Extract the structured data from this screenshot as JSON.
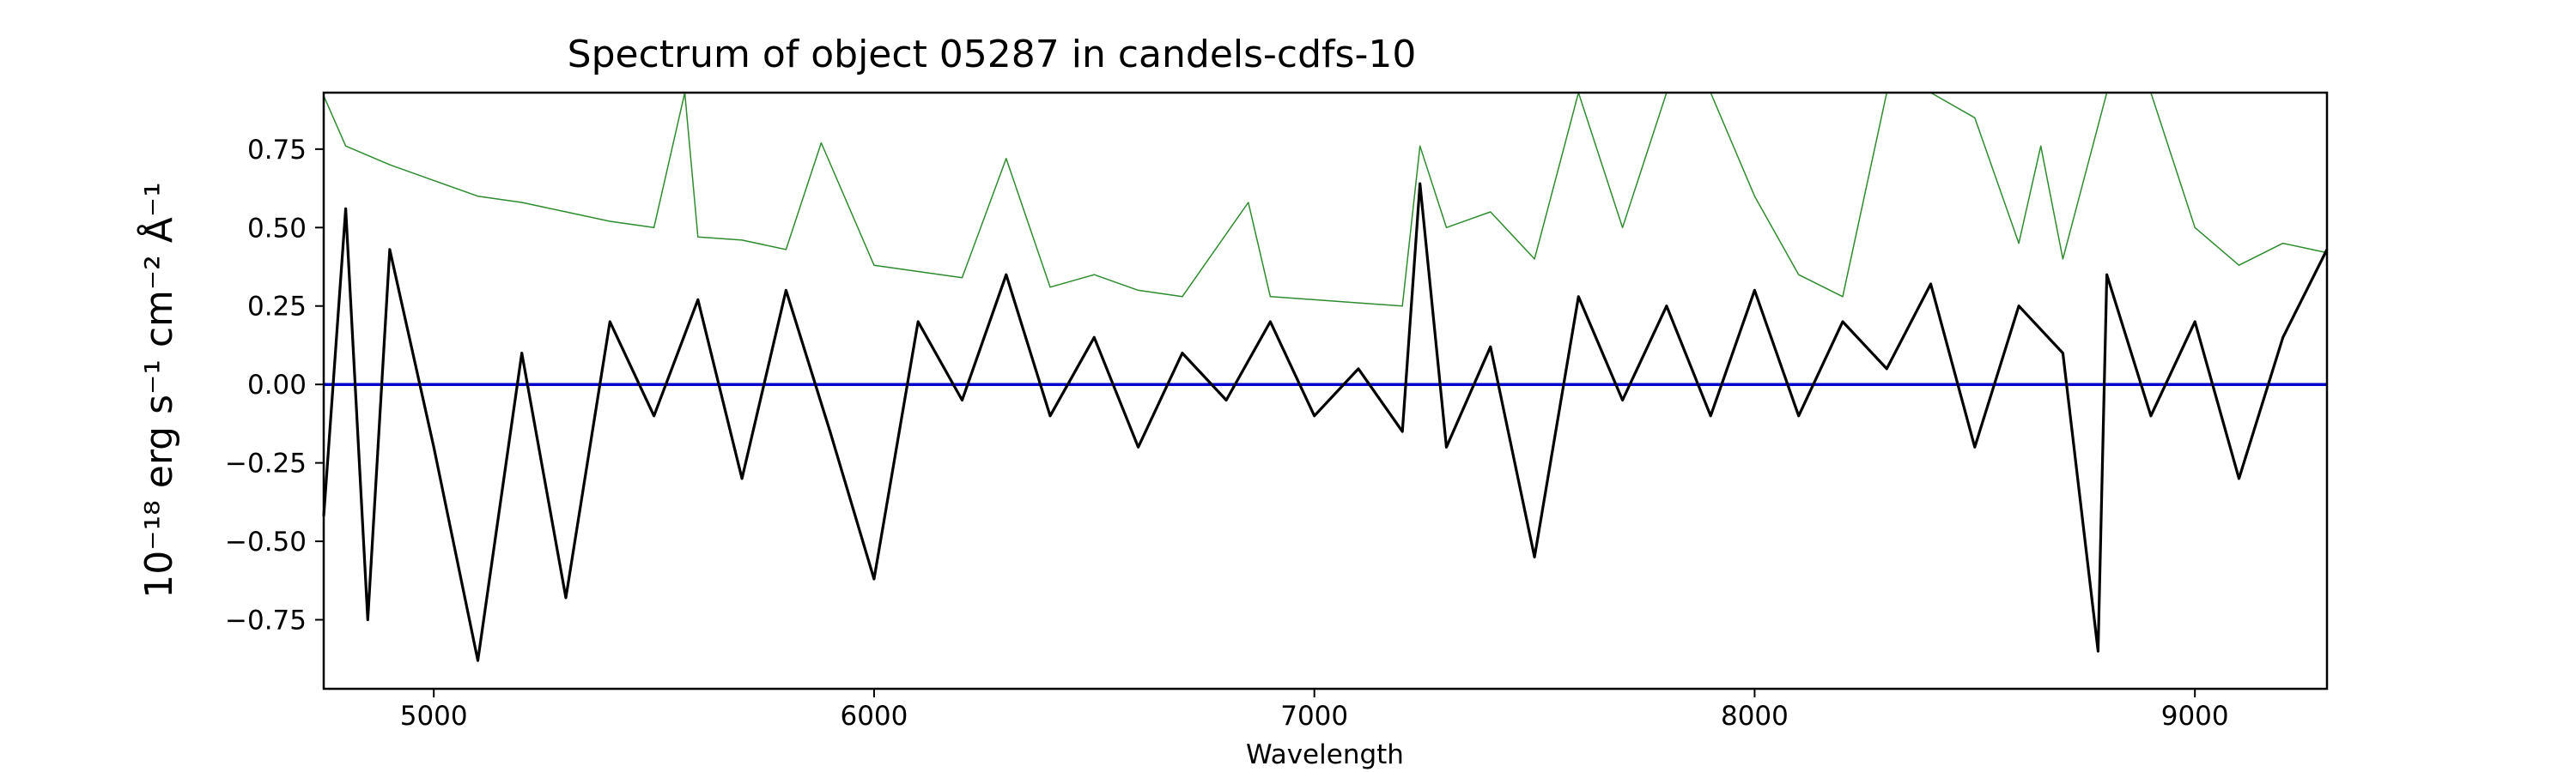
{
  "chart_data": {
    "type": "line",
    "title": "Spectrum of object 05287 in candels-cdfs-10",
    "xlabel": "Wavelength",
    "ylabel": "10⁻¹⁸ erg s⁻¹ cm⁻² Å⁻¹",
    "xlim": [
      4750,
      9300
    ],
    "ylim": [
      -0.97,
      0.93
    ],
    "xticks": [
      5000,
      6000,
      7000,
      8000,
      9000
    ],
    "xtick_labels": [
      "5000",
      "6000",
      "7000",
      "8000",
      "9000"
    ],
    "yticks": [
      0.75,
      0.5,
      0.25,
      0.0,
      -0.25,
      -0.5,
      -0.75
    ],
    "ytick_labels": [
      "0.75",
      "0.50",
      "0.25",
      "0.00",
      "−0.25",
      "−0.50",
      "−0.75"
    ],
    "grid": false,
    "series": [
      {
        "role": "flux",
        "color": "#000000",
        "x": [
          4750,
          4800,
          4850,
          4900,
          5000,
          5100,
          5200,
          5300,
          5400,
          5500,
          5600,
          5700,
          5800,
          5900,
          6000,
          6100,
          6200,
          6300,
          6400,
          6500,
          6600,
          6700,
          6800,
          6900,
          7000,
          7100,
          7200,
          7240,
          7300,
          7400,
          7500,
          7600,
          7700,
          7800,
          7900,
          8000,
          8100,
          8200,
          8300,
          8400,
          8500,
          8600,
          8700,
          8780,
          8800,
          8900,
          9000,
          9100,
          9200,
          9300
        ],
        "y": [
          -0.42,
          0.56,
          -0.75,
          0.43,
          -0.2,
          -0.88,
          0.1,
          -0.68,
          0.2,
          -0.1,
          0.27,
          -0.3,
          0.3,
          -0.15,
          -0.62,
          0.2,
          -0.05,
          0.35,
          -0.1,
          0.15,
          -0.2,
          0.1,
          -0.05,
          0.2,
          -0.1,
          0.05,
          -0.15,
          0.64,
          -0.2,
          0.12,
          -0.55,
          0.28,
          -0.05,
          0.25,
          -0.1,
          0.3,
          -0.1,
          0.2,
          0.05,
          0.32,
          -0.2,
          0.25,
          0.1,
          -0.85,
          0.35,
          -0.1,
          0.2,
          -0.3,
          0.15,
          0.43
        ]
      },
      {
        "role": "error",
        "color": "#2e8b2e",
        "x": [
          4750,
          4800,
          4900,
          5000,
          5100,
          5200,
          5300,
          5400,
          5500,
          5570,
          5600,
          5700,
          5800,
          5880,
          6000,
          6100,
          6200,
          6300,
          6400,
          6500,
          6600,
          6700,
          6850,
          6900,
          7000,
          7100,
          7200,
          7240,
          7300,
          7400,
          7500,
          7600,
          7700,
          7800,
          7900,
          8000,
          8100,
          8200,
          8300,
          8400,
          8500,
          8600,
          8650,
          8700,
          8800,
          8900,
          9000,
          9100,
          9200,
          9300
        ],
        "y": [
          0.92,
          0.76,
          0.7,
          0.65,
          0.6,
          0.58,
          0.55,
          0.52,
          0.5,
          0.93,
          0.47,
          0.46,
          0.43,
          0.77,
          0.38,
          0.36,
          0.34,
          0.72,
          0.31,
          0.35,
          0.3,
          0.28,
          0.58,
          0.28,
          0.27,
          0.26,
          0.25,
          0.76,
          0.5,
          0.55,
          0.4,
          0.93,
          0.5,
          0.93,
          0.93,
          0.6,
          0.35,
          0.28,
          0.93,
          0.93,
          0.85,
          0.45,
          0.76,
          0.4,
          0.93,
          0.93,
          0.5,
          0.38,
          0.45,
          0.42
        ]
      },
      {
        "role": "zero",
        "color": "#0000cc",
        "x": [
          4750,
          9300
        ],
        "y": [
          0,
          0
        ]
      }
    ]
  }
}
